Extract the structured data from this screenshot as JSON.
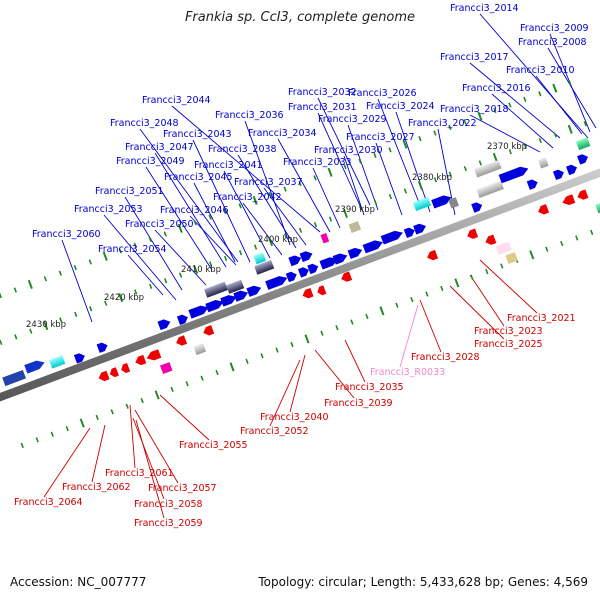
{
  "title": "Frankia sp. CcI3, complete genome",
  "footer": {
    "accession": "Accession: NC_007777",
    "topology": "Topology: circular; Length: 5,433,628 bp; Genes: 4,569"
  },
  "colors": {
    "forward_label": "#0000cc",
    "reverse_label": "#cc0000",
    "rna_label": "#ee88cc",
    "tick": "#228822"
  },
  "kbp_labels": [
    "2370 kbp",
    "2380 kbp",
    "2390 kbp",
    "2400 kbp",
    "2410 kbp",
    "2420 kbp",
    "2430 kbp"
  ],
  "forward_labels": [
    "Francci3_2014",
    "Francci3_2009",
    "Francci3_2008",
    "Francci3_2017",
    "Francci3_2010",
    "Francci3_2016",
    "Francci3_2018",
    "Francci3_2044",
    "Francci3_2036",
    "Francci3_2032",
    "Francci3_2026",
    "Francci3_2031",
    "Francci3_2024",
    "Francci3_2048",
    "Francci3_2029",
    "Francci3_2022",
    "Francci3_2043",
    "Francci3_2034",
    "Francci3_2027",
    "Francci3_2047",
    "Francci3_2038",
    "Francci3_2030",
    "Francci3_2049",
    "Francci3_2041",
    "Francci3_2033",
    "Francci3_2045",
    "Francci3_2037",
    "Francci3_2051",
    "Francci3_2042",
    "Francci3_2053",
    "Francci3_2046",
    "Francci3_2050",
    "Francci3_2060",
    "Francci3_2054"
  ],
  "reverse_labels": [
    "Francci3_2021",
    "Francci3_2023",
    "Francci3_2025",
    "Francci3_2028",
    "Francci3_2035",
    "Francci3_2039",
    "Francci3_2040",
    "Francci3_2052",
    "Francci3_2055",
    "Francci3_2061",
    "Francci3_2057",
    "Francci3_2062",
    "Francci3_2064",
    "Francci3_2058",
    "Francci3_2059"
  ],
  "rna_labels": [
    "Francci3_R0033"
  ]
}
